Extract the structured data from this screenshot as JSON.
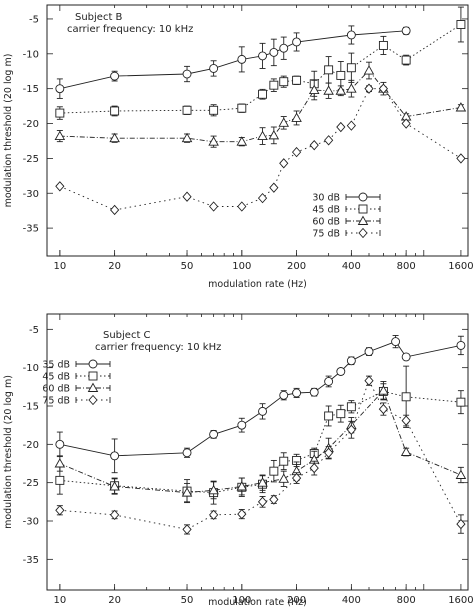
{
  "chart_data": [
    {
      "type": "line",
      "annotations": [
        "Subject B",
        "carrier frequency: 10 kHz"
      ],
      "xlabel": "modulation rate (Hz)",
      "ylabel": "modulation threshold (20 log m)",
      "xscale": "log",
      "xlim": [
        8.5,
        1750
      ],
      "ylim": [
        -39,
        -3
      ],
      "xticks": [
        10,
        20,
        50,
        100,
        200,
        400,
        800,
        1600
      ],
      "yticks": [
        -5,
        -10,
        -15,
        -20,
        -25,
        -30,
        -35
      ],
      "legend_position": "lower-right",
      "series": [
        {
          "name": "30 dB",
          "marker": "circle",
          "line": "solid",
          "x": [
            10,
            20,
            50,
            70,
            100,
            130,
            150,
            170,
            200,
            400,
            800
          ],
          "y": [
            -15,
            -13.2,
            -12.9,
            -12.1,
            -10.8,
            -10.3,
            -9.8,
            -9.2,
            -8.3,
            -7.3,
            -6.7
          ],
          "err": [
            1.4,
            0.7,
            1.1,
            1.1,
            1.8,
            1.8,
            1.9,
            1.6,
            1.3,
            1.3,
            0.5
          ]
        },
        {
          "name": "45 dB",
          "marker": "square",
          "line": "dotted",
          "x": [
            10,
            20,
            50,
            70,
            100,
            130,
            150,
            170,
            200,
            250,
            300,
            350,
            400,
            600,
            800,
            1600
          ],
          "y": [
            -18.5,
            -18.2,
            -18.1,
            -18.1,
            -17.8,
            -15.8,
            -14.5,
            -14,
            -13.8,
            -14.3,
            -12.3,
            -13.1,
            -12,
            -8.8,
            -10.9,
            -5.8
          ],
          "err": [
            0.9,
            0.7,
            0.6,
            0.8,
            0.6,
            0.7,
            0.9,
            0.8,
            0.6,
            1.8,
            1.9,
            2,
            2.1,
            1.3,
            0.7,
            2.5
          ]
        },
        {
          "name": "60 dB",
          "marker": "triangle",
          "line": "dashdot",
          "x": [
            10,
            20,
            50,
            70,
            100,
            130,
            150,
            170,
            200,
            250,
            300,
            350,
            400,
            500,
            600,
            800,
            1600
          ],
          "y": [
            -21.8,
            -22.1,
            -22.1,
            -22.6,
            -22.6,
            -21.8,
            -21.7,
            -19.9,
            -19.2,
            -15.2,
            -15.3,
            -15.3,
            -15.0,
            -12.4,
            -15,
            -19,
            -17.7
          ],
          "err": [
            0.8,
            0.6,
            0.6,
            0.8,
            0.6,
            1.2,
            1.2,
            0.9,
            1.0,
            1.4,
            1.1,
            0.7,
            1.2,
            1.2,
            0.9,
            0.4,
            0.4
          ]
        },
        {
          "name": "75 dB",
          "marker": "diamond",
          "line": "dotted-sparse",
          "x": [
            10,
            20,
            50,
            70,
            100,
            130,
            150,
            170,
            200,
            250,
            300,
            350,
            400,
            500,
            600,
            800,
            1600
          ],
          "y": [
            -29,
            -32.4,
            -30.5,
            -31.9,
            -31.9,
            -30.7,
            -29.2,
            -25.7,
            -24.1,
            -23.1,
            -22.4,
            -20.5,
            -20.3,
            -15,
            -15.0,
            -20.0,
            -25.0
          ],
          "err": [
            0,
            0,
            0,
            0,
            0,
            0,
            0,
            0,
            0,
            0,
            0,
            0,
            0,
            0.4,
            0.3,
            0,
            0
          ]
        }
      ]
    },
    {
      "type": "line",
      "annotations": [
        "Subject C",
        "carrier frequency: 10 kHz"
      ],
      "xlabel": "modulation rate (Hz)",
      "ylabel": "modulation threshold (20 log m)",
      "xscale": "log",
      "xlim": [
        8.5,
        1750
      ],
      "ylim": [
        -39,
        -3
      ],
      "xticks": [
        10,
        20,
        50,
        100,
        200,
        400,
        800,
        1600
      ],
      "yticks": [
        -5,
        -10,
        -15,
        -20,
        -25,
        -30,
        -35
      ],
      "legend_position": "upper-left",
      "series": [
        {
          "name": "35 dB",
          "marker": "circle",
          "line": "solid",
          "x": [
            10,
            20,
            50,
            70,
            100,
            130,
            170,
            200,
            250,
            300,
            350,
            400,
            500,
            700,
            800,
            1600
          ],
          "y": [
            -20,
            -21.5,
            -21.1,
            -18.7,
            -17.5,
            -15.7,
            -13.6,
            -13.3,
            -13.2,
            -11.8,
            -10.5,
            -9.1,
            -7.9,
            -6.6,
            -8.6,
            -7.1
          ],
          "err": [
            1.6,
            2.2,
            0.6,
            0.5,
            0.9,
            1.0,
            0.6,
            0.6,
            0.5,
            0.7,
            0.4,
            0.5,
            0.5,
            0.8,
            0.3,
            1.2
          ]
        },
        {
          "name": "45 dB",
          "marker": "square",
          "line": "dotted",
          "x": [
            10,
            20,
            50,
            70,
            100,
            130,
            150,
            170,
            200,
            250,
            300,
            350,
            400,
            600,
            800,
            1600
          ],
          "y": [
            -24.7,
            -25.4,
            -26.1,
            -26.3,
            -25.6,
            -25.2,
            -23.5,
            -22.2,
            -22.1,
            -21.2,
            -16.3,
            -16.0,
            -15.1,
            -13.1,
            -13.8,
            -14.5
          ],
          "err": [
            1.8,
            1.0,
            1.5,
            1.5,
            1.2,
            1.1,
            1.4,
            1.1,
            0.8,
            0.7,
            1.3,
            1.1,
            0.8,
            1.0,
            4.0,
            1.5
          ]
        },
        {
          "name": "60 dB",
          "marker": "triangle",
          "line": "dashdot",
          "x": [
            10,
            20,
            50,
            70,
            100,
            130,
            170,
            200,
            250,
            300,
            400,
            600,
            800,
            1600
          ],
          "y": [
            -22.5,
            -25.5,
            -26.3,
            -26.0,
            -25.5,
            -25.0,
            -24.5,
            -23.5,
            -22.0,
            -20.5,
            -17.5,
            -13.0,
            -21.0,
            -24.0
          ],
          "err": [
            1.0,
            1.0,
            1.2,
            1.1,
            1.1,
            1.0,
            1.0,
            1.2,
            1.1,
            1.3,
            1.0,
            1.2,
            0.5,
            1.0
          ]
        },
        {
          "name": "75 dB",
          "marker": "diamond",
          "line": "dotted-sparse",
          "x": [
            10,
            20,
            50,
            70,
            100,
            130,
            150,
            200,
            250,
            300,
            400,
            500,
            600,
            800,
            1600
          ],
          "y": [
            -28.6,
            -29.2,
            -31.1,
            -29.2,
            -29.1,
            -27.5,
            -27.2,
            -24.4,
            -23.1,
            -21.1,
            -18.1,
            -11.7,
            -15.4,
            -16.9,
            -30.4
          ],
          "err": [
            0.6,
            0.5,
            0.6,
            0.5,
            0.6,
            0.7,
            0.5,
            0.7,
            0.9,
            0.8,
            1.1,
            0.6,
            0.8,
            0.7,
            1.2
          ]
        }
      ]
    }
  ]
}
